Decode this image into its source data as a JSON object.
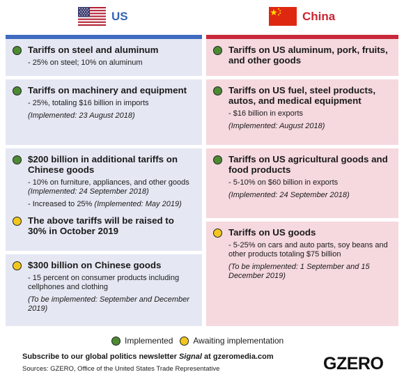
{
  "header": {
    "us": {
      "name": "US",
      "flag_icon": "us-flag-icon",
      "color": "#3566b5"
    },
    "china": {
      "name": "China",
      "flag_icon": "china-flag-icon",
      "color": "#cc2433"
    }
  },
  "colors": {
    "implemented": "#4c8a33",
    "awaiting": "#f1c71e",
    "us_bar": "#3f6cc0",
    "china_bar": "#c8283a",
    "us_box": "#e5e8f3",
    "china_box": "#f5d9df"
  },
  "us": {
    "box1": {
      "title": "Tariffs on steel and aluminum",
      "detail": "- 25% on steel; 10% on aluminum"
    },
    "box2": {
      "title": "Tariffs on machinery and equipment",
      "detail": "- 25%, totaling $16 billion in imports",
      "impl": "(Implemented: 23 August 2018)"
    },
    "box3": {
      "title": "$200 billion in additional tariffs on Chinese goods",
      "detail1": "- 10% on furniture, appliances, and other goods",
      "detail1_impl": "(Implemented: 24 September 2018)",
      "detail2": "- Increased to 25%",
      "detail2_impl": "(Implemented: May 2019)",
      "title2": "The above tariffs will be raised to 30% in October 2019"
    },
    "box4": {
      "title": "$300 billion on Chinese goods",
      "detail": "- 15 percent on consumer products including cellphones and clothing",
      "impl": "(To be implemented: September and December 2019)"
    }
  },
  "china": {
    "box1": {
      "title": "Tariffs on US aluminum, pork, fruits, and other goods"
    },
    "box2": {
      "title": "Tariffs on US fuel, steel products, autos, and medical equipment",
      "detail": "- $16 billion in exports",
      "impl": "(Implemented: August 2018)"
    },
    "box3": {
      "title": "Tariffs on US agricultural goods and food products",
      "detail": "- 5-10% on $60 billion in exports",
      "impl": "(Implemented: 24 September 2018)"
    },
    "box4": {
      "title": "Tariffs on US goods",
      "detail": "- 5-25% on cars and auto parts, soy beans and other products totaling $75 billion",
      "impl": "(To be implemented: 1 September and 15 December 2019)"
    }
  },
  "legend": {
    "implemented": "Implemented",
    "awaiting": "Awaiting implementation"
  },
  "footer": {
    "subscribe_pre": "Subscribe to our global politics newsletter ",
    "subscribe_signal": "Signal",
    "subscribe_post": " at gzeromedia.com",
    "sources": "Sources: GZERO, Office of the United States Trade Representative",
    "logo": "GZERO"
  }
}
